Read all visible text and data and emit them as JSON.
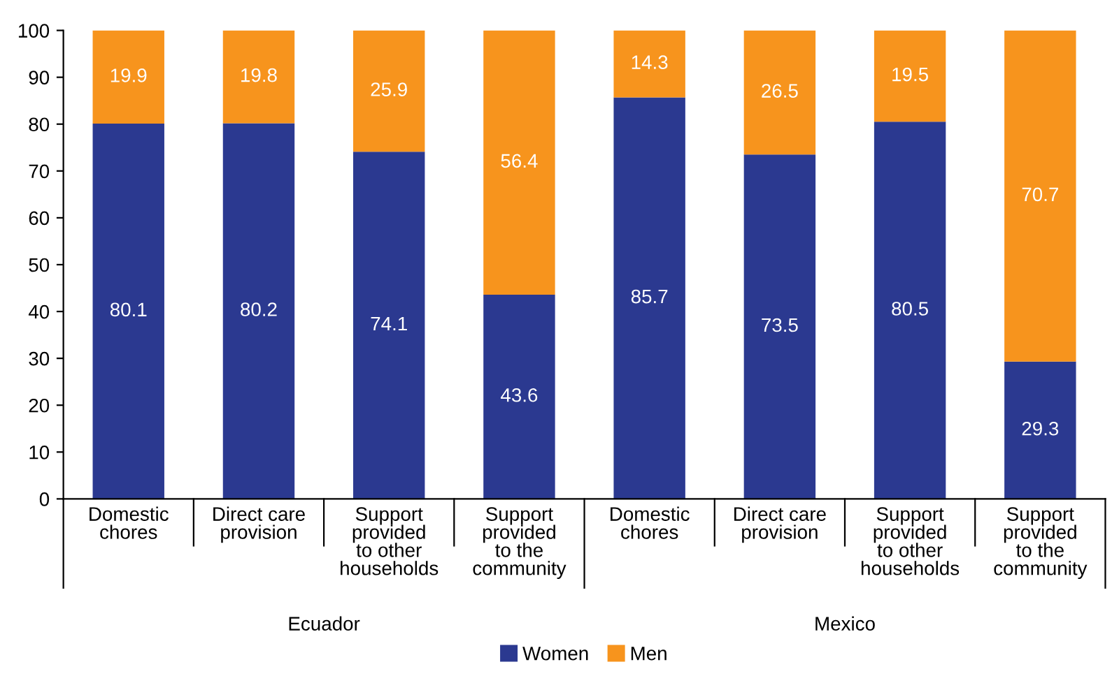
{
  "chart_data": {
    "type": "bar",
    "stacked": true,
    "categories": [
      "Domestic\nchores",
      "Direct care\nprovision",
      "Support\nprovided\nto other\nhouseholds",
      "Support\nprovided\nto the\ncommunity",
      "Domestic\nchores",
      "Direct care\nprovision",
      "Support\nprovided\nto other\nhouseholds",
      "Support\nprovided\nto the\ncommunity"
    ],
    "series": [
      {
        "name": "Women",
        "color": "#2b3990",
        "values": [
          80.1,
          80.2,
          74.1,
          43.6,
          85.7,
          73.5,
          80.5,
          29.3
        ]
      },
      {
        "name": "Men",
        "color": "#f7941d",
        "values": [
          19.9,
          19.8,
          25.9,
          56.4,
          14.3,
          26.5,
          19.5,
          70.7
        ]
      }
    ],
    "ylim": [
      0,
      100
    ],
    "yticks": [
      0,
      10,
      20,
      30,
      40,
      50,
      60,
      70,
      80,
      90,
      100
    ],
    "data_labels": true,
    "legend": "bottom",
    "grid": false,
    "annotations": [
      "Ecuador",
      "Mexico"
    ]
  }
}
